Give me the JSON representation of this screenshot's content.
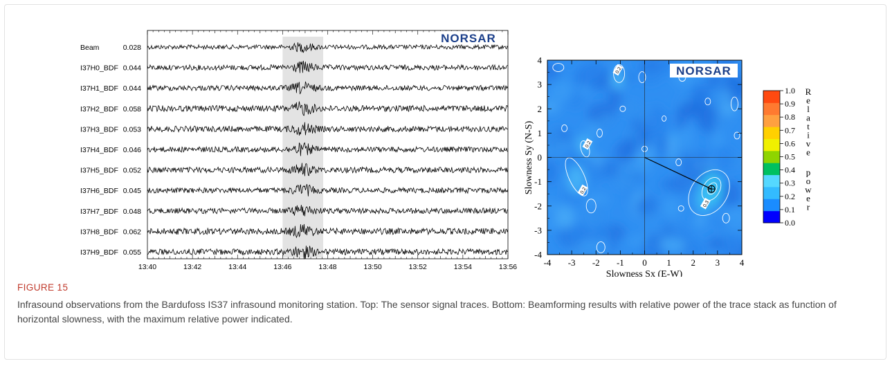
{
  "caption": {
    "label": "FIGURE 15",
    "text": "Infrasound observations from the Bardufoss IS37 infrasound monitoring station. Top: The sensor signal traces. Bottom: Beamforming results with relative power of the trace stack as function of horizontal slowness, with the maximum relative power indicated."
  },
  "chart_data": [
    {
      "type": "line",
      "logo": "NORSAR",
      "series": [
        {
          "name": "Beam",
          "amplitude": "0.028"
        },
        {
          "name": "I37H0_BDF",
          "amplitude": "0.044"
        },
        {
          "name": "I37H1_BDF",
          "amplitude": "0.044"
        },
        {
          "name": "I37H2_BDF",
          "amplitude": "0.058"
        },
        {
          "name": "I37H3_BDF",
          "amplitude": "0.053"
        },
        {
          "name": "I37H4_BDF",
          "amplitude": "0.046"
        },
        {
          "name": "I37H5_BDF",
          "amplitude": "0.052"
        },
        {
          "name": "I37H6_BDF",
          "amplitude": "0.045"
        },
        {
          "name": "I37H7_BDF",
          "amplitude": "0.048"
        },
        {
          "name": "I37H8_BDF",
          "amplitude": "0.062"
        },
        {
          "name": "I37H9_BDF",
          "amplitude": "0.055"
        }
      ],
      "x_ticks": [
        "13:40",
        "13:42",
        "13:44",
        "13:46",
        "13:48",
        "13:50",
        "13:52",
        "13:54",
        "13:56"
      ],
      "xlim_minutes": [
        0,
        16
      ],
      "highlight_window_minutes": [
        6.0,
        7.8
      ],
      "signal_center_minutes": 6.9
    },
    {
      "type": "heatmap",
      "logo": "NORSAR",
      "xlabel": "Slowness Sx (E-W)",
      "ylabel": "Slowness Sy (N-S)",
      "xlim": [
        -4,
        4
      ],
      "ylim": [
        -4,
        4
      ],
      "x_ticks": [
        "-4",
        "-3",
        "-2",
        "-1",
        "0",
        "1",
        "2",
        "3",
        "4"
      ],
      "y_ticks": [
        "-4",
        "-3",
        "-2",
        "-1",
        "0",
        "1",
        "2",
        "3",
        "4"
      ],
      "max_power_location": {
        "sx": 2.75,
        "sy": -1.3
      },
      "contour_labels": [
        {
          "text": "0.2",
          "sx": -1.1,
          "sy": 3.6
        },
        {
          "text": "0.2",
          "sx": -2.35,
          "sy": 0.55
        },
        {
          "text": "0.2",
          "sx": -2.55,
          "sy": -1.35
        },
        {
          "text": "0.3",
          "sx": 2.5,
          "sy": -1.9
        }
      ],
      "colorbar": {
        "label": "Relative power",
        "ticks": [
          "1.0",
          "0.9",
          "0.8",
          "0.7",
          "0.6",
          "0.5",
          "0.4",
          "0.3",
          "0.2",
          "0.1",
          "0.0"
        ],
        "colors": [
          "#0000ff",
          "#1a8cff",
          "#33bbff",
          "#55d8ff",
          "#00c060",
          "#8fd400",
          "#f0f000",
          "#ffd000",
          "#ffa040",
          "#ff7a30",
          "#ff4a10"
        ]
      }
    }
  ]
}
